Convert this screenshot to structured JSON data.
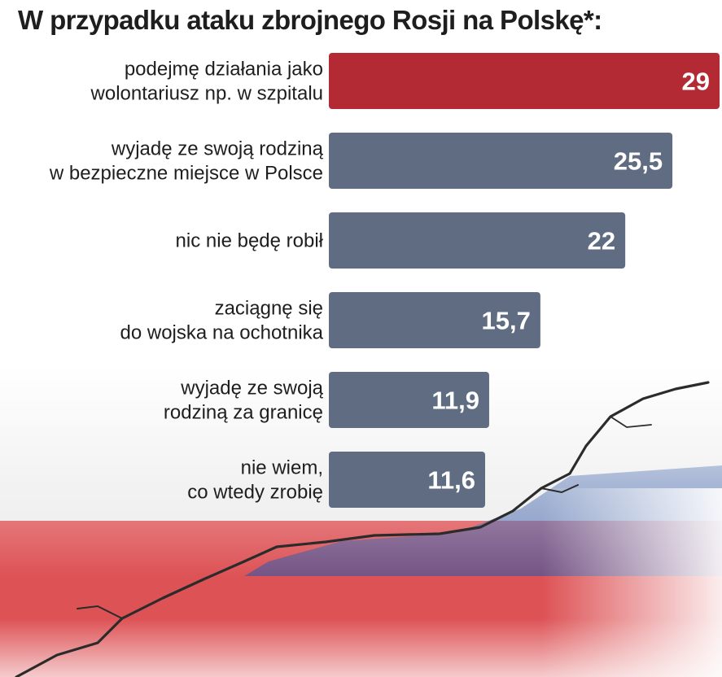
{
  "title": "W przypadku ataku zbrojnego Rosji na Polskę*:",
  "colors": {
    "highlight_bar": "#b32a34",
    "bar": "#5f6c82",
    "flag_red": "#d9262a",
    "flag_blue": "#2f55a4"
  },
  "chart_data": {
    "type": "bar",
    "orientation": "horizontal",
    "categories": [
      [
        "podejmę działania jako",
        "wolontariusz np. w szpitalu"
      ],
      [
        "wyjadę ze swoją rodziną",
        "w bezpieczne miejsce w Polsce"
      ],
      [
        "nic nie będę robił"
      ],
      [
        "zaciągnę się",
        "do wojska na ochotnika"
      ],
      [
        "wyjadę ze swoją",
        "rodziną za granicę"
      ],
      [
        "nie wiem,",
        "co wtedy zrobię"
      ]
    ],
    "values": [
      29,
      25.5,
      22,
      15.7,
      11.9,
      11.6
    ],
    "value_labels": [
      "29",
      "25,5",
      "22",
      "15,7",
      "11,9",
      "11,6"
    ],
    "highlight_index": 0,
    "xlim": [
      0,
      29
    ]
  }
}
